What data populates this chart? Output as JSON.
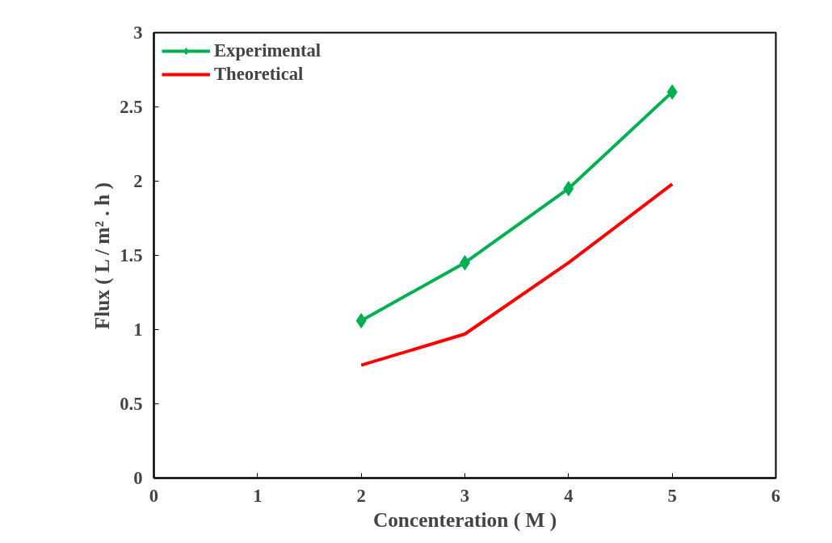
{
  "chart_data": {
    "type": "line",
    "xlabel": "Concenteration ( M )",
    "ylabel": "Flux ( L / m² . h )",
    "x": [
      2,
      3,
      4,
      5
    ],
    "series": [
      {
        "name": "Experimental",
        "color": "#00b050",
        "values": [
          1.06,
          1.45,
          1.95,
          2.6
        ],
        "marker": "diamond"
      },
      {
        "name": "Theoretical",
        "color": "#ff0000",
        "values": [
          0.76,
          0.97,
          1.45,
          1.98
        ],
        "marker": "none"
      }
    ],
    "xlim": [
      0,
      6
    ],
    "xticks": [
      0,
      1,
      2,
      3,
      4,
      5,
      6
    ],
    "ylim": [
      0,
      3
    ],
    "yticks": [
      0,
      0.5,
      1,
      1.5,
      2,
      2.5,
      3
    ],
    "grid": false,
    "legend": "top left",
    "line_style": "solid"
  }
}
